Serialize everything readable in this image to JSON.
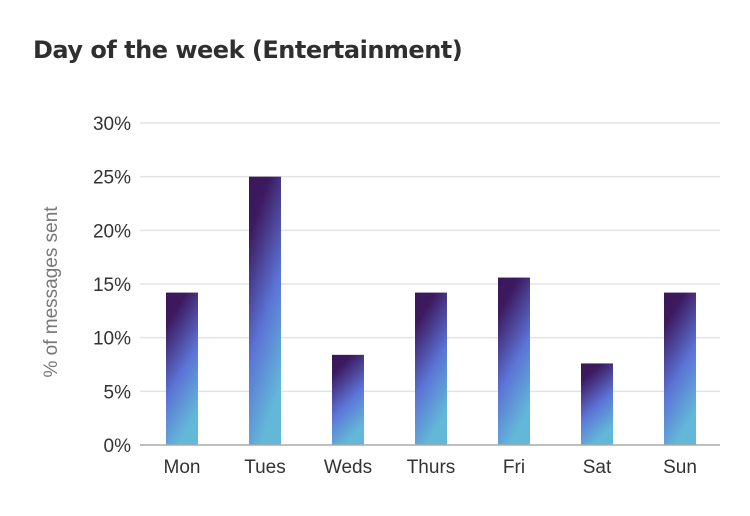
{
  "chart_data": {
    "type": "bar",
    "title": "Day of the week (Entertainment)",
    "xlabel": "",
    "ylabel": "% of messages sent",
    "categories": [
      "Mon",
      "Tues",
      "Weds",
      "Thurs",
      "Fri",
      "Sat",
      "Sun"
    ],
    "values": [
      14.2,
      25.0,
      8.4,
      14.2,
      15.6,
      7.6,
      14.2
    ],
    "ylim": [
      0,
      30
    ],
    "yticks": [
      "0%",
      "5%",
      "10%",
      "15%",
      "20%",
      "25%",
      "30%"
    ],
    "grid": true,
    "legend": "none",
    "colors": {
      "bar_top": "#3b1659",
      "bar_mid": "#5b74d6",
      "bar_bottom": "#63b7d8",
      "gridline": "#e3e3e3",
      "axis": "#aaaaaa"
    }
  }
}
